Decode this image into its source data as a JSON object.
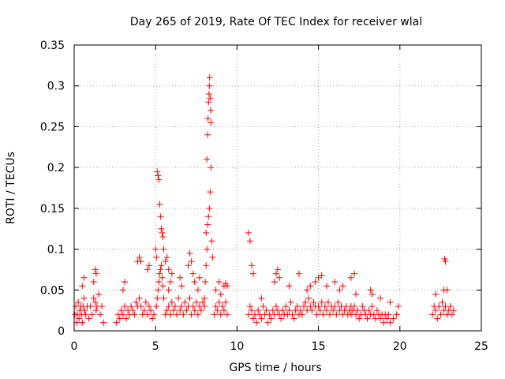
{
  "chart_data": {
    "type": "scatter",
    "title": "Day 265 of 2019, Rate Of TEC Index for receiver wlal",
    "xlabel": "GPS time / hours",
    "ylabel": "ROTI / TECUs",
    "xlim": [
      0,
      25
    ],
    "ylim": [
      0,
      0.35
    ],
    "x_ticks": [
      0,
      5,
      10,
      15,
      20,
      25
    ],
    "x_tick_labels": [
      "0",
      "5",
      "10",
      "15",
      "20",
      "25"
    ],
    "y_ticks": [
      0,
      0.05,
      0.1,
      0.15,
      0.2,
      0.25,
      0.3,
      0.35
    ],
    "y_tick_labels": [
      "0",
      "0.05",
      "0.1",
      "0.15",
      "0.2",
      "0.25",
      "0.3",
      "0.35"
    ],
    "grid": true,
    "marker": "plus",
    "color": "#ff0000",
    "series": [
      {
        "name": "ROTI",
        "x": [
          0.05,
          0.1,
          0.15,
          0.2,
          0.25,
          0.3,
          0.35,
          0.4,
          0.45,
          0.5,
          0.55,
          0.6,
          0.65,
          0.7,
          0.8,
          0.9,
          1.0,
          1.1,
          1.2,
          1.3,
          1.35,
          1.4,
          1.5,
          1.6,
          1.7,
          1.8,
          0.5,
          0.6,
          1.2,
          1.3,
          1.35,
          2.6,
          2.7,
          2.8,
          2.9,
          3.0,
          3.1,
          3.2,
          3.3,
          3.4,
          3.5,
          3.6,
          3.7,
          3.8,
          3.9,
          4.0,
          4.1,
          4.2,
          4.3,
          4.4,
          4.5,
          4.6,
          4.7,
          4.8,
          4.9,
          3.0,
          3.1,
          3.9,
          4.0,
          4.1,
          4.5,
          4.6,
          5.0,
          5.05,
          5.1,
          5.15,
          5.2,
          5.25,
          5.3,
          5.35,
          5.4,
          5.45,
          5.5,
          5.05,
          5.1,
          5.15,
          5.2,
          5.25,
          5.3,
          5.35,
          5.4,
          5.45,
          5.5,
          5.6,
          5.7,
          5.8,
          5.6,
          5.7,
          5.8,
          5.9,
          6.0,
          6.1,
          6.2,
          6.3,
          6.4,
          6.5,
          6.6,
          6.7,
          6.8,
          6.9,
          7.0,
          7.1,
          7.2,
          7.3,
          7.4,
          7.5,
          7.6,
          7.7,
          7.8,
          7.9,
          8.0,
          5.8,
          5.9,
          6.0,
          6.5,
          6.6,
          7.0,
          7.1,
          7.2,
          7.3,
          7.4,
          7.6,
          7.7,
          8.0,
          8.05,
          8.1,
          8.15,
          8.2,
          8.25,
          8.3,
          8.35,
          8.4,
          8.1,
          8.15,
          8.2,
          8.22,
          8.25,
          8.28,
          8.3,
          8.32,
          8.35,
          8.38,
          8.4,
          8.45,
          8.5,
          8.6,
          8.7,
          8.8,
          8.9,
          9.0,
          9.1,
          9.2,
          9.3,
          9.4,
          8.7,
          8.9,
          9.0,
          9.2,
          9.3,
          9.4,
          10.7,
          10.8,
          10.9,
          11.0,
          11.1,
          11.2,
          11.3,
          11.4,
          11.5,
          11.6,
          11.7,
          11.8,
          11.9,
          12.0,
          12.1,
          12.2,
          12.3,
          12.4,
          12.5,
          12.6,
          12.7,
          12.8,
          12.9,
          13.0,
          13.1,
          13.2,
          13.3,
          13.4,
          13.5,
          13.6,
          13.7,
          13.8,
          13.9,
          10.7,
          10.8,
          10.9,
          11.0,
          11.5,
          12.3,
          12.4,
          12.5,
          12.6,
          13.2,
          13.8,
          14.0,
          14.1,
          14.2,
          14.3,
          14.4,
          14.5,
          14.6,
          14.7,
          14.8,
          14.9,
          15.0,
          15.1,
          15.2,
          15.3,
          15.4,
          15.5,
          15.6,
          15.7,
          15.8,
          15.9,
          16.0,
          16.1,
          16.2,
          16.3,
          16.4,
          16.5,
          16.6,
          16.7,
          16.8,
          16.9,
          17.0,
          14.3,
          14.5,
          14.8,
          15.0,
          15.2,
          15.5,
          16.0,
          16.3,
          16.5,
          17.0,
          17.2,
          17.0,
          17.1,
          17.2,
          17.3,
          17.4,
          17.5,
          17.6,
          17.7,
          17.8,
          17.9,
          18.0,
          18.1,
          18.2,
          18.3,
          18.4,
          18.5,
          18.6,
          18.7,
          18.8,
          18.9,
          19.0,
          19.1,
          19.2,
          19.3,
          19.4,
          19.6,
          19.8,
          17.3,
          18.2,
          18.3,
          18.8,
          19.4,
          19.9,
          22.0,
          22.1,
          22.2,
          22.3,
          22.4,
          22.5,
          22.6,
          22.7,
          22.8,
          22.9,
          23.0,
          23.1,
          23.2,
          23.3,
          22.2,
          22.7,
          22.75,
          22.8,
          22.9
        ],
        "y": [
          0.02,
          0.03,
          0.01,
          0.02,
          0.035,
          0.015,
          0.025,
          0.03,
          0.02,
          0.01,
          0.03,
          0.04,
          0.025,
          0.02,
          0.03,
          0.015,
          0.03,
          0.02,
          0.04,
          0.035,
          0.025,
          0.03,
          0.045,
          0.02,
          0.03,
          0.01,
          0.055,
          0.065,
          0.06,
          0.075,
          0.07,
          0.01,
          0.02,
          0.015,
          0.025,
          0.02,
          0.03,
          0.015,
          0.025,
          0.02,
          0.03,
          0.025,
          0.02,
          0.035,
          0.03,
          0.04,
          0.03,
          0.02,
          0.025,
          0.035,
          0.02,
          0.03,
          0.025,
          0.015,
          0.02,
          0.05,
          0.06,
          0.085,
          0.09,
          0.085,
          0.075,
          0.08,
          0.1,
          0.09,
          0.195,
          0.19,
          0.185,
          0.155,
          0.14,
          0.125,
          0.12,
          0.115,
          0.1,
          0.03,
          0.04,
          0.05,
          0.06,
          0.07,
          0.075,
          0.08,
          0.065,
          0.055,
          0.04,
          0.085,
          0.09,
          0.075,
          0.02,
          0.025,
          0.03,
          0.02,
          0.035,
          0.025,
          0.03,
          0.02,
          0.04,
          0.025,
          0.03,
          0.02,
          0.035,
          0.025,
          0.03,
          0.04,
          0.02,
          0.03,
          0.025,
          0.035,
          0.02,
          0.03,
          0.025,
          0.035,
          0.03,
          0.05,
          0.06,
          0.07,
          0.065,
          0.055,
          0.08,
          0.095,
          0.085,
          0.07,
          0.06,
          0.05,
          0.065,
          0.04,
          0.06,
          0.08,
          0.1,
          0.13,
          0.14,
          0.15,
          0.17,
          0.2,
          0.12,
          0.21,
          0.24,
          0.26,
          0.28,
          0.29,
          0.3,
          0.31,
          0.285,
          0.27,
          0.255,
          0.11,
          0.09,
          0.02,
          0.03,
          0.025,
          0.035,
          0.02,
          0.03,
          0.025,
          0.035,
          0.02,
          0.05,
          0.06,
          0.045,
          0.055,
          0.058,
          0.055,
          0.02,
          0.03,
          0.025,
          0.015,
          0.02,
          0.01,
          0.025,
          0.02,
          0.015,
          0.03,
          0.02,
          0.025,
          0.01,
          0.02,
          0.015,
          0.025,
          0.02,
          0.03,
          0.025,
          0.02,
          0.015,
          0.025,
          0.02,
          0.03,
          0.02,
          0.025,
          0.035,
          0.02,
          0.015,
          0.025,
          0.03,
          0.02,
          0.025,
          0.12,
          0.11,
          0.08,
          0.07,
          0.04,
          0.06,
          0.07,
          0.075,
          0.065,
          0.055,
          0.07,
          0.02,
          0.03,
          0.035,
          0.025,
          0.04,
          0.03,
          0.025,
          0.035,
          0.03,
          0.02,
          0.03,
          0.025,
          0.035,
          0.02,
          0.03,
          0.025,
          0.035,
          0.02,
          0.03,
          0.025,
          0.03,
          0.02,
          0.035,
          0.025,
          0.03,
          0.02,
          0.025,
          0.03,
          0.02,
          0.025,
          0.03,
          0.05,
          0.055,
          0.06,
          0.065,
          0.068,
          0.055,
          0.06,
          0.05,
          0.055,
          0.065,
          0.07,
          0.02,
          0.025,
          0.03,
          0.02,
          0.025,
          0.015,
          0.02,
          0.03,
          0.025,
          0.02,
          0.015,
          0.025,
          0.02,
          0.03,
          0.02,
          0.015,
          0.025,
          0.02,
          0.015,
          0.02,
          0.01,
          0.02,
          0.015,
          0.02,
          0.01,
          0.015,
          0.02,
          0.045,
          0.05,
          0.045,
          0.04,
          0.035,
          0.03,
          0.02,
          0.03,
          0.025,
          0.015,
          0.03,
          0.02,
          0.035,
          0.025,
          0.03,
          0.02,
          0.025,
          0.03,
          0.02,
          0.025,
          0.045,
          0.05,
          0.088,
          0.085,
          0.05
        ]
      }
    ]
  }
}
